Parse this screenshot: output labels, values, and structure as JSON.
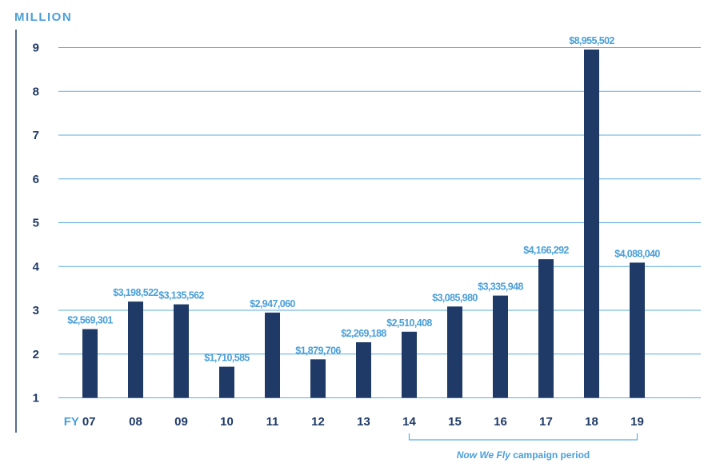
{
  "chart_data": {
    "type": "bar",
    "unit_label": "MILLION",
    "x_prefix": "FY",
    "categories": [
      "07",
      "08",
      "09",
      "10",
      "11",
      "12",
      "13",
      "14",
      "15",
      "16",
      "17",
      "18",
      "19"
    ],
    "values": [
      2569301,
      3198522,
      3135562,
      1710585,
      2947060,
      1879706,
      2269188,
      2510408,
      3085980,
      3335948,
      4166292,
      8955502,
      4088040
    ],
    "data_labels": [
      "$2,569,301",
      "$3,198,522",
      "$3,135,562",
      "$1,710,585",
      "$2,947,060",
      "$1,879,706",
      "$2,269,188",
      "$2,510,408",
      "$3,085,980",
      "$3,335,948",
      "$4,166,292",
      "$8,955,502",
      "$4,088,040"
    ],
    "yticks": [
      1,
      2,
      3,
      4,
      5,
      6,
      7,
      8,
      9
    ],
    "ylim": [
      1,
      9
    ],
    "y_scale": 1000000,
    "grid": true,
    "annotation": {
      "italic_text": "Now We Fly",
      "text": "campaign period",
      "from_category": "14",
      "to_category": "19"
    },
    "colors": {
      "bar": "#1f3a66",
      "grid": "#5aaede",
      "axis": "#1f3a66",
      "tick_text": "#1f3a66",
      "data_label": "#4a9fd8",
      "unit_label": "#4a9fd8",
      "fy_prefix": "#4a9fd8",
      "bracket": "#5aaede"
    }
  }
}
